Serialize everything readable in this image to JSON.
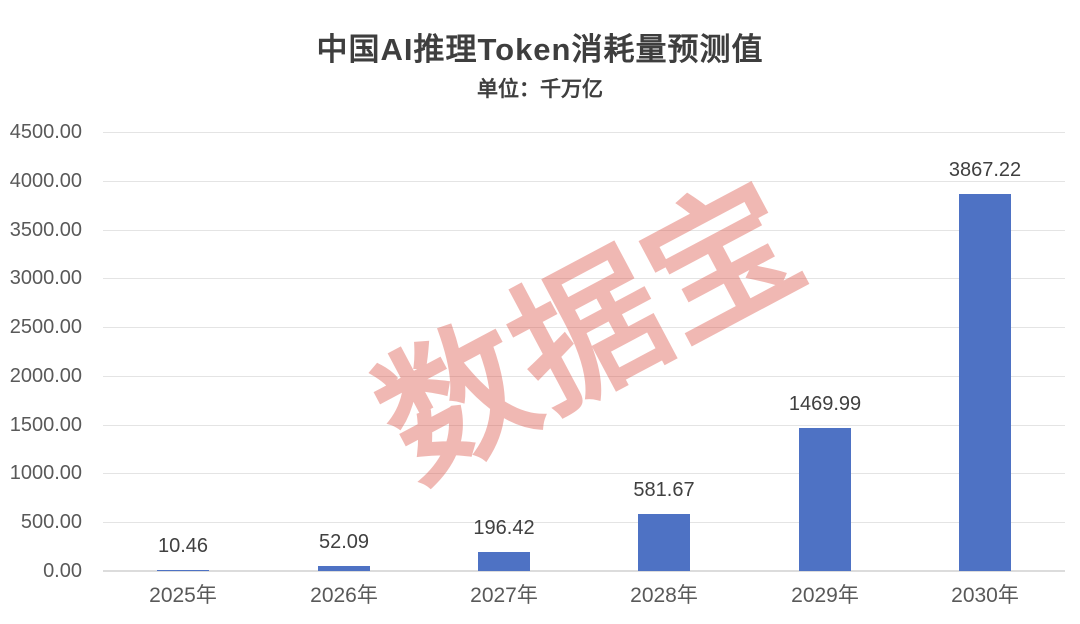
{
  "header": {
    "title": "中国AI推理Token消耗量预测值",
    "subtitle": "单位：千万亿"
  },
  "watermark": {
    "text": "数据宝",
    "color": "rgba(219, 85, 74, 0.42)"
  },
  "colors": {
    "bar": "#4e72c4",
    "gridline": "#e4e4e4",
    "axis_line": "#dcdcdc",
    "tick_label": "#595959",
    "data_label": "#404040",
    "title_text": "#3e3e3e"
  },
  "chart_data": {
    "type": "bar",
    "title": "中国AI推理Token消耗量预测值",
    "subtitle": "单位：千万亿",
    "categories": [
      "2025年",
      "2026年",
      "2027年",
      "2028年",
      "2029年",
      "2030年"
    ],
    "values": [
      10.46,
      52.09,
      196.42,
      581.67,
      1469.99,
      3867.22
    ],
    "data_labels": [
      "10.46",
      "52.09",
      "196.42",
      "581.67",
      "1469.99",
      "3867.22"
    ],
    "xlabel": "",
    "ylabel": "",
    "ylim": [
      0,
      4500
    ],
    "ytick_step": 500,
    "ytick_labels": [
      "0.00",
      "500.00",
      "1000.00",
      "1500.00",
      "2000.00",
      "2500.00",
      "3000.00",
      "3500.00",
      "4000.00",
      "4500.00"
    ],
    "grid": true,
    "legend": false,
    "value_labels_shown": true,
    "bar_color": "#4e72c4",
    "watermark": "数据宝"
  }
}
